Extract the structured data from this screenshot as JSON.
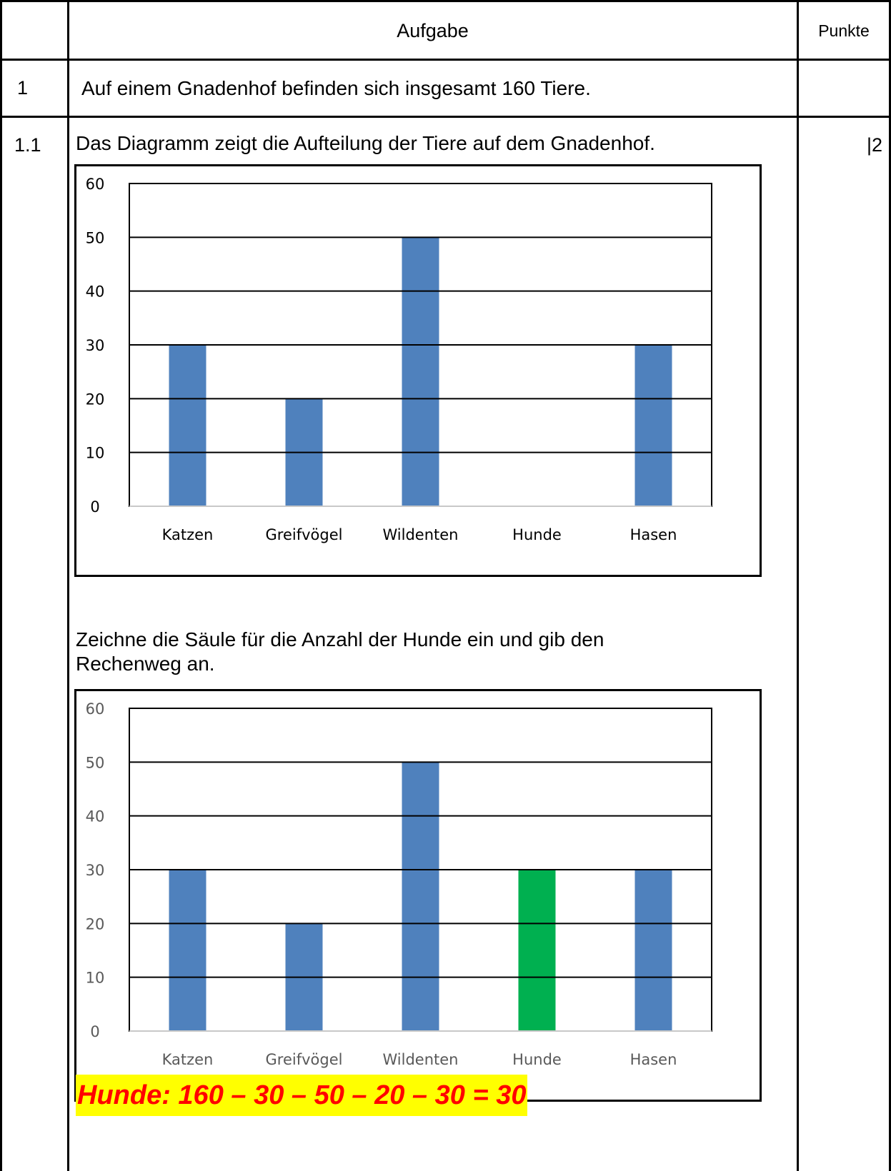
{
  "table": {
    "header": {
      "aufgabe": "Aufgabe",
      "punkte": "Punkte"
    },
    "row1": {
      "number": "1",
      "text": "Auf einem Gnadenhof befinden sich insgesamt 160 Tiere."
    },
    "row2": {
      "number": "1.1",
      "text": "Das Diagramm zeigt die Aufteilung der Tiere auf dem Gnadenhof.",
      "points": "|2",
      "instruction_line1": "Zeichne die Säule für die Anzahl der Hunde ein und gib den",
      "instruction_line2": "Rechenweg an.",
      "answer": "Hunde: 160 – 30 – 50 – 20 – 30 = 30"
    }
  },
  "chart_data": [
    {
      "type": "bar",
      "categories": [
        "Katzen",
        "Greifvögel",
        "Wildenten",
        "Hunde",
        "Hasen"
      ],
      "values": [
        30,
        20,
        50,
        null,
        30
      ],
      "ylim": [
        0,
        60
      ],
      "yticks": [
        0,
        10,
        20,
        30,
        40,
        50,
        60
      ],
      "grid": true,
      "colors": [
        "#4f81bd",
        "#4f81bd",
        "#4f81bd",
        "#4f81bd",
        "#4f81bd"
      ],
      "label_color": "#000000"
    },
    {
      "type": "bar",
      "categories": [
        "Katzen",
        "Greifvögel",
        "Wildenten",
        "Hunde",
        "Hasen"
      ],
      "values": [
        30,
        20,
        50,
        30,
        30
      ],
      "ylim": [
        0,
        60
      ],
      "yticks": [
        0,
        10,
        20,
        30,
        40,
        50,
        60
      ],
      "grid": true,
      "colors": [
        "#4f81bd",
        "#4f81bd",
        "#4f81bd",
        "#00b050",
        "#4f81bd"
      ],
      "label_color": "#595959"
    }
  ]
}
